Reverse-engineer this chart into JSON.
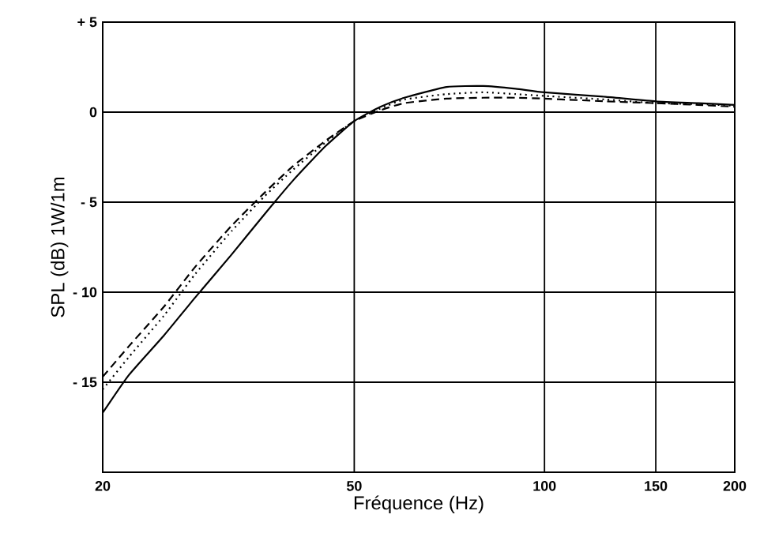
{
  "chart_data": {
    "type": "line",
    "xlabel": "Fréquence (Hz)",
    "ylabel": "SPL (dB) 1W/1m",
    "log": "x",
    "grid": true,
    "marker": "none",
    "x": [
      20,
      22,
      25,
      28,
      32,
      36,
      40,
      45,
      50,
      55,
      60,
      70,
      80,
      90,
      100,
      125,
      150,
      175,
      200
    ],
    "xlim": [
      20,
      200
    ],
    "xticks": [
      20,
      50,
      100,
      150,
      200
    ],
    "ylim": [
      -20,
      5
    ],
    "yticks": [
      {
        "value": -20,
        "label": null
      },
      {
        "value": -15,
        "label": "- 15"
      },
      {
        "value": -10,
        "label": "- 10"
      },
      {
        "value": -5,
        "label": "- 5"
      },
      0,
      {
        "value": 5,
        "label": "+ 5"
      }
    ],
    "series": [
      {
        "color": "#000000",
        "line_style": "solid",
        "values": [
          -16.7,
          -14.6,
          -12.4,
          -10.3,
          -7.9,
          -5.7,
          -3.8,
          -1.9,
          -0.5,
          0.3,
          0.8,
          1.4,
          1.45,
          1.3,
          1.1,
          0.85,
          0.6,
          0.5,
          0.4
        ]
      },
      {
        "color": "#000000",
        "line_style": "dashed",
        "values": [
          -14.7,
          -13.0,
          -10.8,
          -8.6,
          -6.3,
          -4.5,
          -3.0,
          -1.6,
          -0.5,
          0.1,
          0.5,
          0.75,
          0.8,
          0.8,
          0.75,
          0.6,
          0.5,
          0.4,
          0.3
        ]
      },
      {
        "color": "#000000",
        "line_style": "dotted",
        "values": [
          -15.4,
          -13.6,
          -11.3,
          -9.0,
          -6.6,
          -4.7,
          -3.2,
          -1.7,
          -0.5,
          0.2,
          0.7,
          1.0,
          1.1,
          1.0,
          0.9,
          0.7,
          0.5,
          0.45,
          0.35
        ]
      }
    ]
  }
}
